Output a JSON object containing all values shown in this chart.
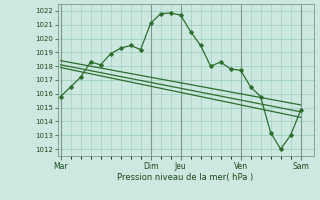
{
  "background_color": "#cce8e0",
  "grid_color": "#99ccbb",
  "line_color": "#2d6e2d",
  "xlabel": "Pression niveau de la mer( hPa )",
  "ylim": [
    1011.5,
    1022.5
  ],
  "yticks": [
    1012,
    1013,
    1014,
    1015,
    1016,
    1017,
    1018,
    1019,
    1020,
    1021,
    1022
  ],
  "day_labels": [
    "Mar",
    "Dim",
    "Jeu",
    "Ven",
    "Sam"
  ],
  "day_positions": [
    0,
    9,
    12,
    18,
    24
  ],
  "xlim": [
    -0.3,
    25.3
  ],
  "series1_x": [
    0,
    1,
    2,
    3,
    4,
    5,
    6,
    7,
    8,
    9,
    10,
    11,
    12,
    13,
    14,
    15,
    16,
    17,
    18,
    19,
    20,
    21,
    22,
    23,
    24
  ],
  "series1_y": [
    1015.8,
    1016.5,
    1017.2,
    1018.3,
    1018.1,
    1018.9,
    1019.3,
    1019.5,
    1019.2,
    1021.1,
    1021.8,
    1021.85,
    1021.7,
    1020.5,
    1019.5,
    1018.0,
    1018.3,
    1017.8,
    1017.7,
    1016.5,
    1015.8,
    1013.2,
    1012.0,
    1013.0,
    1014.8
  ],
  "series2_x": [
    0,
    24
  ],
  "series2_y": [
    1018.4,
    1015.2
  ],
  "series3_x": [
    0,
    24
  ],
  "series3_y": [
    1018.1,
    1014.7
  ],
  "series4_x": [
    0,
    24
  ],
  "series4_y": [
    1017.9,
    1014.3
  ]
}
